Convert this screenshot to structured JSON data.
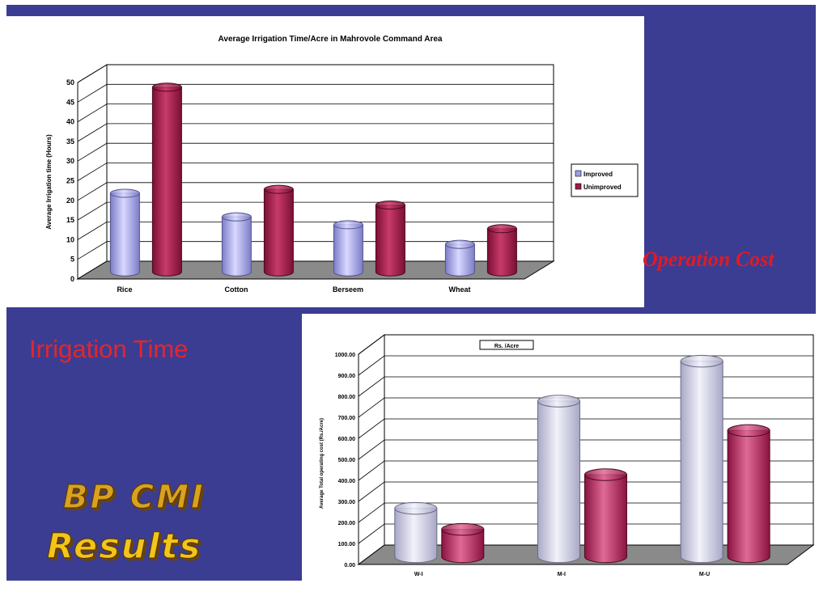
{
  "headings": {
    "operation_cost": "Operation Cost",
    "irrigation_time": "Irrigation Time",
    "results_line1": "BP CMI",
    "results_line2": "Results"
  },
  "colors": {
    "background": "#3b3d93",
    "improved": "#9e9ee6",
    "unimproved": "#9b1c4a",
    "heading_red": "#e3262c",
    "results_gold": "#f3c41a"
  },
  "chart_data": [
    {
      "type": "bar",
      "style": "3d-cylinder",
      "title": "Average Irrigation Time/Acre in Mahrovole Command Area",
      "ylabel": "Average Irrigation time (Hours)",
      "xlabel": "",
      "categories": [
        "Rice",
        "Cotton",
        "Berseem",
        "Wheat"
      ],
      "series": [
        {
          "name": "Improved",
          "values": [
            20,
            14,
            12,
            7
          ]
        },
        {
          "name": "Unimproved",
          "values": [
            47,
            21,
            17,
            11
          ]
        }
      ],
      "ylim": [
        0,
        50
      ],
      "yticks": [
        "0",
        "5",
        "10",
        "15",
        "20",
        "25",
        "30",
        "35",
        "40",
        "45",
        "50"
      ],
      "grid": true,
      "legend": "right"
    },
    {
      "type": "bar",
      "style": "3d-cylinder",
      "title": "",
      "legend_label": "Rs. /Acre",
      "ylabel": "Average Total operating cost (Rs./Acre)",
      "categories": [
        "W-I",
        "M-I",
        "M-U"
      ],
      "series": [
        {
          "values": [
            230,
            740,
            930
          ]
        },
        {
          "values": [
            130,
            390,
            600
          ]
        }
      ],
      "ylim": [
        0,
        1000
      ],
      "yticks": [
        "0.00",
        "100.00",
        "200.00",
        "300.00",
        "400.00",
        "500.00",
        "600.00",
        "700.00",
        "800.00",
        "900.00",
        "1000.00"
      ],
      "grid": true,
      "legend": "top-left"
    }
  ]
}
